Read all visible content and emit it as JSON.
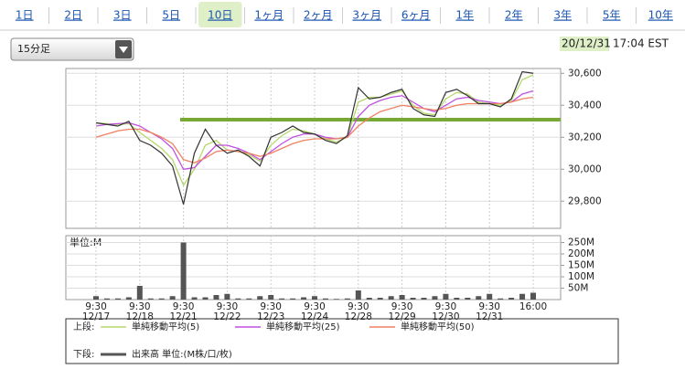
{
  "tabs": {
    "items": [
      "1日",
      "2日",
      "3日",
      "5日",
      "10日",
      "1ヶ月",
      "2ヶ月",
      "3ヶ月",
      "6ヶ月",
      "1年",
      "2年",
      "3年",
      "5年",
      "10年"
    ],
    "selected_index": 4
  },
  "dropdown": {
    "label": "15分足"
  },
  "timestamp": {
    "date": "20/12/31",
    "time": "17:04 EST"
  },
  "chart_data": [
    {
      "type": "line",
      "name": "price",
      "categories": [
        "9:30",
        null,
        null,
        null,
        "9:30",
        null,
        null,
        null,
        "9:30",
        null,
        null,
        null,
        "9:30",
        null,
        null,
        null,
        "9:30",
        null,
        null,
        null,
        "9:30",
        null,
        null,
        null,
        "9:30",
        null,
        null,
        null,
        "9:30",
        null,
        null,
        null,
        "9:30",
        null,
        null,
        null,
        "9:30",
        null,
        null,
        null,
        "16:00"
      ],
      "dates": [
        "12/17",
        null,
        null,
        null,
        "12/18",
        null,
        null,
        null,
        "12/21",
        null,
        null,
        null,
        "12/22",
        null,
        null,
        null,
        "12/23",
        null,
        null,
        null,
        "12/24",
        null,
        null,
        null,
        "12/28",
        null,
        null,
        null,
        "12/29",
        null,
        null,
        null,
        "12/30",
        null,
        null,
        null,
        "12/31",
        null,
        null,
        null,
        null
      ],
      "series": [
        {
          "color": "#333333",
          "values": [
            30290,
            30280,
            30270,
            30300,
            30180,
            30150,
            30100,
            30020,
            29780,
            30100,
            30250,
            30150,
            30100,
            30120,
            30080,
            30020,
            30200,
            30230,
            30270,
            30230,
            30220,
            30180,
            30160,
            30210,
            30510,
            30440,
            30450,
            30480,
            30500,
            30380,
            30340,
            30330,
            30480,
            30500,
            30460,
            30410,
            30410,
            30390,
            30440,
            30610,
            30600
          ]
        },
        {
          "name": "単純移動平均(5)",
          "color": "#b5d86a",
          "values": [
            30290,
            30285,
            30280,
            30285,
            30230,
            30180,
            30130,
            30060,
            29900,
            30000,
            30150,
            30180,
            30120,
            30110,
            30090,
            30050,
            30150,
            30210,
            30250,
            30240,
            30220,
            30190,
            30170,
            30200,
            30420,
            30450,
            30450,
            30470,
            30490,
            30400,
            30350,
            30340,
            30440,
            30480,
            30470,
            30420,
            30410,
            30400,
            30430,
            30560,
            30590
          ]
        },
        {
          "name": "単純移動平均(25)",
          "color": "#c050e0",
          "values": [
            30270,
            30280,
            30285,
            30290,
            30270,
            30230,
            30190,
            30130,
            30000,
            30010,
            30080,
            30150,
            30150,
            30130,
            30100,
            30060,
            30110,
            30160,
            30200,
            30220,
            30220,
            30200,
            30190,
            30200,
            30330,
            30400,
            30430,
            30450,
            30460,
            30420,
            30380,
            30360,
            30400,
            30440,
            30450,
            30430,
            30420,
            30410,
            30420,
            30470,
            30490
          ]
        },
        {
          "name": "単純移動平均(50)",
          "color": "#f08060",
          "values": [
            30200,
            30220,
            30240,
            30250,
            30250,
            30230,
            30200,
            30160,
            30060,
            30040,
            30070,
            30110,
            30120,
            30110,
            30100,
            30080,
            30100,
            30130,
            30160,
            30180,
            30190,
            30190,
            30190,
            30200,
            30270,
            30320,
            30360,
            30380,
            30400,
            30390,
            30380,
            30370,
            30380,
            30400,
            30410,
            30410,
            30410,
            30410,
            30420,
            30440,
            30450
          ]
        }
      ],
      "hline": {
        "value": 30310,
        "color": "#77aa33"
      },
      "legend_label": "上段:",
      "ylim": [
        29630,
        30630
      ],
      "yticks": [
        {
          "value": 29800,
          "label": "29,800"
        },
        {
          "value": 30000,
          "label": "30,000"
        },
        {
          "value": 30200,
          "label": "30,200"
        },
        {
          "value": 30400,
          "label": "30,400"
        },
        {
          "value": 30600,
          "label": "30,600"
        }
      ],
      "grid": true
    },
    {
      "type": "bar",
      "name": "volume",
      "axis_label": "単位:M",
      "legend_label": "下段:",
      "series": [
        {
          "name": "出来高 単位:(M株/口/枚)",
          "color": "#555555",
          "values": [
            15,
            5,
            5,
            10,
            60,
            5,
            5,
            15,
            250,
            10,
            10,
            20,
            25,
            5,
            5,
            15,
            20,
            5,
            5,
            10,
            15,
            5,
            3,
            5,
            40,
            8,
            8,
            15,
            20,
            8,
            8,
            15,
            25,
            8,
            8,
            15,
            25,
            5,
            8,
            25,
            30
          ]
        }
      ],
      "ylim": [
        0,
        280
      ],
      "yticks": [
        {
          "value": 50,
          "label": "50M"
        },
        {
          "value": 100,
          "label": "100M"
        },
        {
          "value": 150,
          "label": "150M"
        },
        {
          "value": 200,
          "label": "200M"
        },
        {
          "value": 250,
          "label": "250M"
        }
      ],
      "grid": true
    }
  ]
}
